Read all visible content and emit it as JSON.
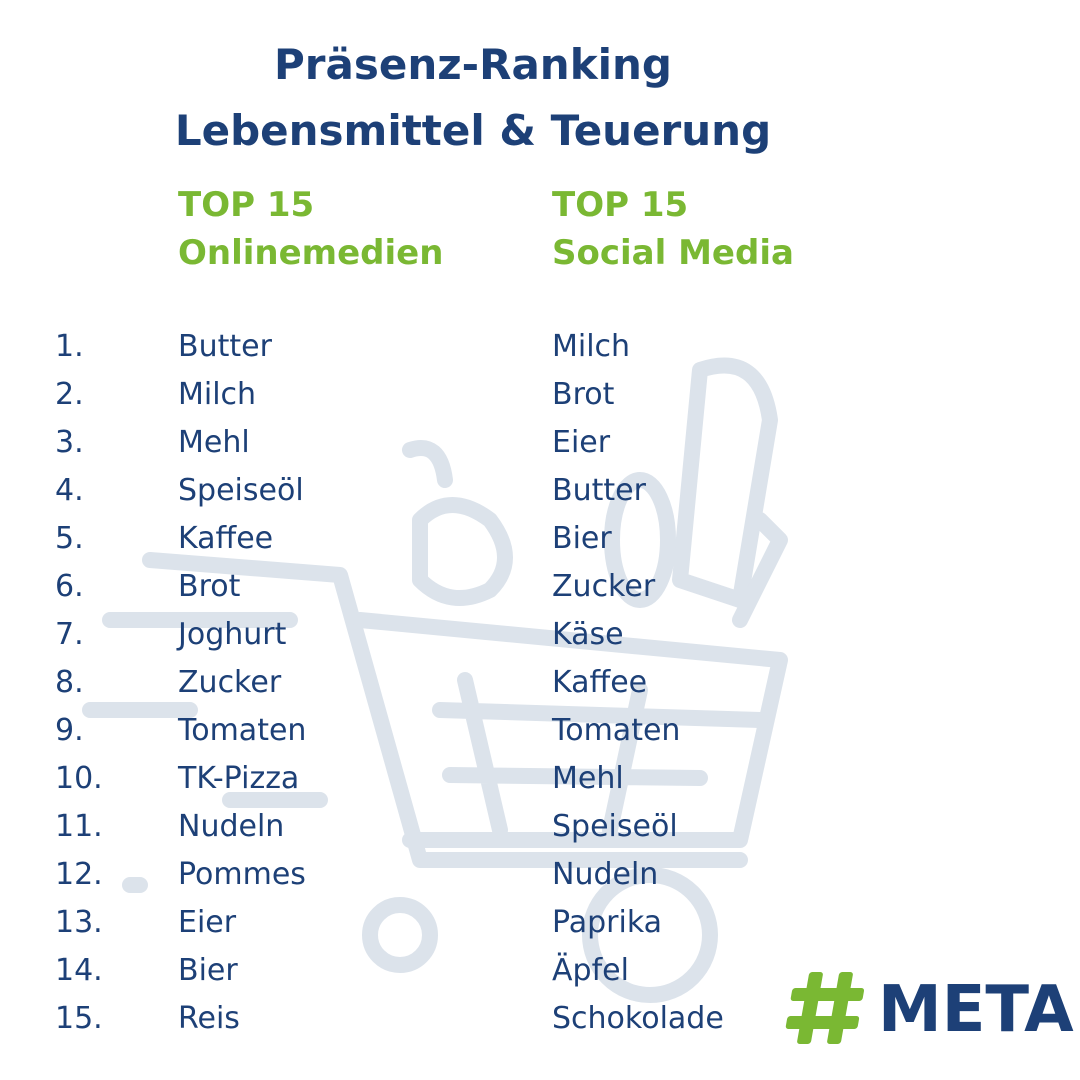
{
  "title": [
    "Präsenz-Ranking",
    "Lebensmittel & Teuerung"
  ],
  "ranks": [
    "1.",
    "2.",
    "3.",
    "4.",
    "5.",
    "6.",
    "7.",
    "8.",
    "9.",
    "10.",
    "11.",
    "12.",
    "13.",
    "14.",
    "15."
  ],
  "columns": [
    {
      "heading": [
        "TOP 15",
        "Onlinemedien"
      ],
      "items": [
        "Butter",
        "Milch",
        "Mehl",
        "Speiseöl",
        "Kaffee",
        "Brot",
        "Joghurt",
        "Zucker",
        "Tomaten",
        "TK-Pizza",
        "Nudeln",
        "Pommes",
        "Eier",
        "Bier",
        "Reis"
      ]
    },
    {
      "heading": [
        "TOP 15",
        "Social Media"
      ],
      "items": [
        "Milch",
        "Brot",
        "Eier",
        "Butter",
        "Bier",
        "Zucker",
        "Käse",
        "Kaffee",
        "Tomaten",
        "Mehl",
        "Speiseöl",
        "Nudeln",
        "Paprika",
        "Äpfel",
        "Schokolade"
      ]
    }
  ],
  "logo": "META"
}
